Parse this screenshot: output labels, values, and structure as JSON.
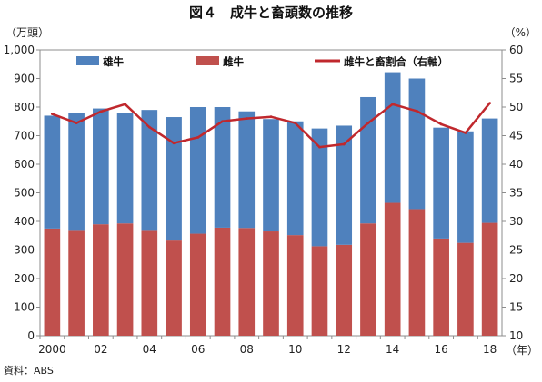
{
  "chart_data": {
    "type": "bar",
    "title": "図４　成牛と畜頭数の推移",
    "y_left_unit": "（万頭）",
    "y_right_unit": "（%）",
    "x_unit": "（年）",
    "source": "資料：ABS",
    "ylim": [
      0,
      1000
    ],
    "ylim_right": [
      10,
      60
    ],
    "y_ticks": [
      "0",
      "100",
      "200",
      "300",
      "400",
      "500",
      "600",
      "700",
      "800",
      "900",
      "1,000"
    ],
    "y_right_ticks": [
      "10",
      "15",
      "20",
      "25",
      "30",
      "35",
      "40",
      "45",
      "50",
      "55",
      "60"
    ],
    "categories": [
      "2000",
      "01",
      "02",
      "03",
      "04",
      "05",
      "06",
      "07",
      "08",
      "09",
      "10",
      "11",
      "12",
      "13",
      "14",
      "15",
      "16",
      "17",
      "18"
    ],
    "x_tick_labels": [
      "2000",
      "",
      "02",
      "",
      "04",
      "",
      "06",
      "",
      "08",
      "",
      "10",
      "",
      "12",
      "",
      "14",
      "",
      "16",
      "",
      "18"
    ],
    "series": [
      {
        "name": "雌牛",
        "kind": "bar-stack-bottom",
        "color": "#c0504d",
        "values": [
          375,
          367,
          390,
          393,
          367,
          333,
          357,
          378,
          377,
          365,
          352,
          313,
          318,
          393,
          465,
          443,
          340,
          325,
          395
        ]
      },
      {
        "name": "雄牛",
        "kind": "bar-stack-top",
        "color": "#4f81bd",
        "values": [
          395,
          413,
          405,
          387,
          423,
          432,
          443,
          422,
          408,
          393,
          398,
          412,
          417,
          442,
          457,
          457,
          388,
          390,
          365
        ]
      },
      {
        "name": "雌牛と畜割合（右軸）",
        "kind": "line-right-axis",
        "color": "#c0282d",
        "values": [
          48.8,
          47.2,
          49.2,
          50.5,
          46.5,
          43.7,
          44.7,
          47.5,
          48.0,
          48.3,
          47.2,
          43.0,
          43.5,
          47.2,
          50.5,
          49.3,
          47.0,
          45.5,
          50.7
        ]
      }
    ],
    "legend_position": "top",
    "grid": false
  }
}
